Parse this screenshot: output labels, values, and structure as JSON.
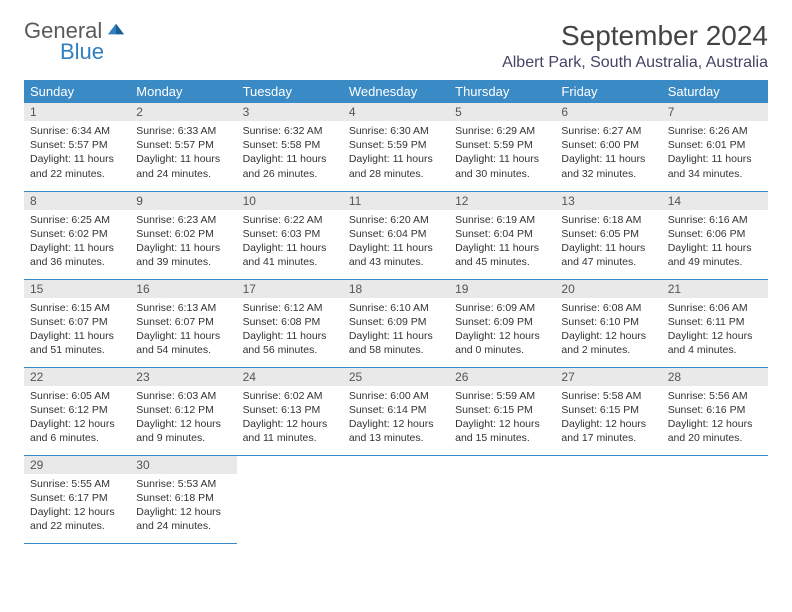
{
  "brand": {
    "name1": "General",
    "name2": "Blue",
    "mark_color": "#2f7fc2",
    "text_gray": "#5a5a5a"
  },
  "title": "September 2024",
  "location": "Albert Park, South Australia, Australia",
  "header_bg": "#3a8ac6",
  "daynum_bg": "#e9e9e9",
  "weekdays": [
    "Sunday",
    "Monday",
    "Tuesday",
    "Wednesday",
    "Thursday",
    "Friday",
    "Saturday"
  ],
  "weeks": [
    [
      {
        "n": "1",
        "sr": "6:34 AM",
        "ss": "5:57 PM",
        "dl": "11 hours and 22 minutes."
      },
      {
        "n": "2",
        "sr": "6:33 AM",
        "ss": "5:57 PM",
        "dl": "11 hours and 24 minutes."
      },
      {
        "n": "3",
        "sr": "6:32 AM",
        "ss": "5:58 PM",
        "dl": "11 hours and 26 minutes."
      },
      {
        "n": "4",
        "sr": "6:30 AM",
        "ss": "5:59 PM",
        "dl": "11 hours and 28 minutes."
      },
      {
        "n": "5",
        "sr": "6:29 AM",
        "ss": "5:59 PM",
        "dl": "11 hours and 30 minutes."
      },
      {
        "n": "6",
        "sr": "6:27 AM",
        "ss": "6:00 PM",
        "dl": "11 hours and 32 minutes."
      },
      {
        "n": "7",
        "sr": "6:26 AM",
        "ss": "6:01 PM",
        "dl": "11 hours and 34 minutes."
      }
    ],
    [
      {
        "n": "8",
        "sr": "6:25 AM",
        "ss": "6:02 PM",
        "dl": "11 hours and 36 minutes."
      },
      {
        "n": "9",
        "sr": "6:23 AM",
        "ss": "6:02 PM",
        "dl": "11 hours and 39 minutes."
      },
      {
        "n": "10",
        "sr": "6:22 AM",
        "ss": "6:03 PM",
        "dl": "11 hours and 41 minutes."
      },
      {
        "n": "11",
        "sr": "6:20 AM",
        "ss": "6:04 PM",
        "dl": "11 hours and 43 minutes."
      },
      {
        "n": "12",
        "sr": "6:19 AM",
        "ss": "6:04 PM",
        "dl": "11 hours and 45 minutes."
      },
      {
        "n": "13",
        "sr": "6:18 AM",
        "ss": "6:05 PM",
        "dl": "11 hours and 47 minutes."
      },
      {
        "n": "14",
        "sr": "6:16 AM",
        "ss": "6:06 PM",
        "dl": "11 hours and 49 minutes."
      }
    ],
    [
      {
        "n": "15",
        "sr": "6:15 AM",
        "ss": "6:07 PM",
        "dl": "11 hours and 51 minutes."
      },
      {
        "n": "16",
        "sr": "6:13 AM",
        "ss": "6:07 PM",
        "dl": "11 hours and 54 minutes."
      },
      {
        "n": "17",
        "sr": "6:12 AM",
        "ss": "6:08 PM",
        "dl": "11 hours and 56 minutes."
      },
      {
        "n": "18",
        "sr": "6:10 AM",
        "ss": "6:09 PM",
        "dl": "11 hours and 58 minutes."
      },
      {
        "n": "19",
        "sr": "6:09 AM",
        "ss": "6:09 PM",
        "dl": "12 hours and 0 minutes."
      },
      {
        "n": "20",
        "sr": "6:08 AM",
        "ss": "6:10 PM",
        "dl": "12 hours and 2 minutes."
      },
      {
        "n": "21",
        "sr": "6:06 AM",
        "ss": "6:11 PM",
        "dl": "12 hours and 4 minutes."
      }
    ],
    [
      {
        "n": "22",
        "sr": "6:05 AM",
        "ss": "6:12 PM",
        "dl": "12 hours and 6 minutes."
      },
      {
        "n": "23",
        "sr": "6:03 AM",
        "ss": "6:12 PM",
        "dl": "12 hours and 9 minutes."
      },
      {
        "n": "24",
        "sr": "6:02 AM",
        "ss": "6:13 PM",
        "dl": "12 hours and 11 minutes."
      },
      {
        "n": "25",
        "sr": "6:00 AM",
        "ss": "6:14 PM",
        "dl": "12 hours and 13 minutes."
      },
      {
        "n": "26",
        "sr": "5:59 AM",
        "ss": "6:15 PM",
        "dl": "12 hours and 15 minutes."
      },
      {
        "n": "27",
        "sr": "5:58 AM",
        "ss": "6:15 PM",
        "dl": "12 hours and 17 minutes."
      },
      {
        "n": "28",
        "sr": "5:56 AM",
        "ss": "6:16 PM",
        "dl": "12 hours and 20 minutes."
      }
    ],
    [
      {
        "n": "29",
        "sr": "5:55 AM",
        "ss": "6:17 PM",
        "dl": "12 hours and 22 minutes."
      },
      {
        "n": "30",
        "sr": "5:53 AM",
        "ss": "6:18 PM",
        "dl": "12 hours and 24 minutes."
      },
      null,
      null,
      null,
      null,
      null
    ]
  ],
  "labels": {
    "sunrise": "Sunrise:",
    "sunset": "Sunset:",
    "daylight": "Daylight:"
  }
}
